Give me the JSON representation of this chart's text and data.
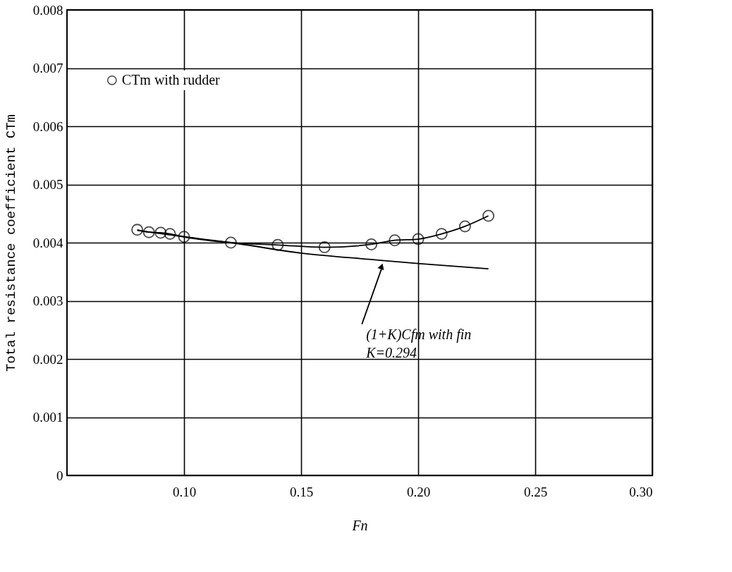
{
  "chart_data": {
    "type": "scatter",
    "xlabel": "Fn",
    "ylabel": "Total resistance coefficient CTm",
    "xlim": [
      0.05,
      0.3
    ],
    "xticks": [
      {
        "value": 0.1,
        "label": "0.10"
      },
      {
        "value": 0.15,
        "label": "0.15"
      },
      {
        "value": 0.2,
        "label": "0.20"
      },
      {
        "value": 0.25,
        "label": "0.25"
      },
      {
        "value": 0.3,
        "label": "0.30"
      }
    ],
    "ylim": [
      0,
      0.008
    ],
    "yticks": [
      {
        "value": 0,
        "label": "0"
      },
      0.001,
      0.002,
      0.003,
      0.004,
      0.005,
      0.006,
      0.007,
      0.008
    ],
    "grid": true,
    "legend": "top left",
    "series": [
      {
        "name": "CTm with rudder",
        "marker": "circle",
        "color": "#000000",
        "x": [
          0.08,
          0.085,
          0.09,
          0.094,
          0.1,
          0.12,
          0.14,
          0.16,
          0.18,
          0.19,
          0.2,
          0.21,
          0.22,
          0.23
        ],
        "values": [
          0.00422,
          0.00418,
          0.00417,
          0.00415,
          0.0041,
          0.004,
          0.00396,
          0.00392,
          0.00397,
          0.00404,
          0.00406,
          0.00415,
          0.00428,
          0.00446
        ]
      },
      {
        "type": "line",
        "color": "#000000",
        "line_style": "solid",
        "x": [
          0.08,
          0.085,
          0.09,
          0.094,
          0.1,
          0.12,
          0.14,
          0.16,
          0.18,
          0.19,
          0.2,
          0.21,
          0.22,
          0.23
        ],
        "values": [
          0.00422,
          0.00418,
          0.00417,
          0.00415,
          0.0041,
          0.004,
          0.00396,
          0.00392,
          0.00397,
          0.00404,
          0.00406,
          0.00415,
          0.00428,
          0.00446
        ]
      },
      {
        "type": "line",
        "color": "#000000",
        "line_style": "solid",
        "x": [
          0.08,
          0.1,
          0.12,
          0.15,
          0.18,
          0.2,
          0.23
        ],
        "values": [
          0.00421,
          0.0041,
          0.004,
          0.00382,
          0.00371,
          0.00364,
          0.00355
        ]
      }
    ],
    "annotations": [
      {
        "text": "(1+K)Cfm with fin\nK=0.294",
        "x": 0.185,
        "y": 0.00369
      }
    ]
  }
}
